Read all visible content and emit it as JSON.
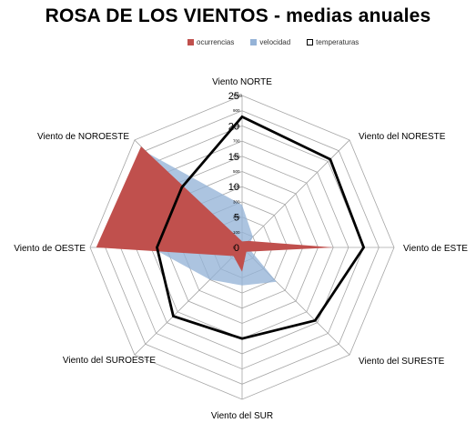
{
  "chart_data": {
    "type": "radar",
    "title": "ROSA DE LOS VIENTOS  - medias anuales",
    "categories": [
      "Viento NORTE",
      "Viento del NORESTE",
      "Viento de ESTE",
      "Viento del SURESTE",
      "Viento del SUR",
      "Viento del SUROESTE",
      "Viento de OESTE",
      "Viento de NOROESTE"
    ],
    "series": [
      {
        "name": "velocidad",
        "color": "#95b3d7",
        "values": [
          280,
          100,
          40,
          320,
          250,
          300,
          600,
          880
        ]
      },
      {
        "name": "ocurrencias",
        "color": "#c0504d",
        "values": [
          1,
          1.5,
          15,
          1,
          4,
          2,
          24,
          23.5
        ]
      },
      {
        "name": "temperaturas",
        "color": "#000000",
        "values": [
          21.5,
          20.5,
          20,
          17,
          15,
          16,
          14,
          14
        ]
      }
    ],
    "axis_primary": {
      "min": 0,
      "max": 25,
      "ticks": [
        "0",
        "5",
        "10",
        "15",
        "20",
        "25"
      ]
    },
    "axis_secondary": {
      "min": 0,
      "max": 1000,
      "ticks": [
        "0",
        "100",
        "200",
        "300",
        "400",
        "500",
        "600",
        "700",
        "800",
        "900",
        "1000"
      ]
    },
    "legend_position": "top",
    "grid": true
  }
}
